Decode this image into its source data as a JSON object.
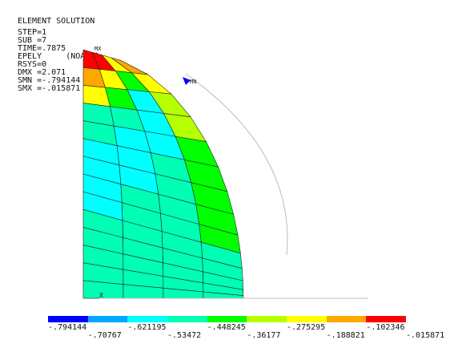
{
  "header": {
    "title": "ELEMENT SOLUTION",
    "lines": [
      "STEP=1",
      "SUB =7",
      "TIME=.7875",
      "EPELY     (NOAVG)",
      "RSYS=0",
      "DMX =2.071",
      "SMN =-.794144",
      "SMX =-.015871"
    ]
  },
  "markers": {
    "max": "MX",
    "min": "MN",
    "axis_x": "X"
  },
  "legend": {
    "colors": [
      "#0000ff",
      "#00a8ff",
      "#00ffff",
      "#00ffb4",
      "#00ff00",
      "#b4ff00",
      "#ffff00",
      "#ffa800",
      "#ff0000"
    ],
    "labels_top": [
      "-.794144",
      "-.621195",
      "-.448245",
      "-.275295",
      "-.102346"
    ],
    "labels_bottom": [
      "-.70767",
      "-.53472",
      "-.36177",
      "-.188821",
      "-.015871"
    ]
  }
}
